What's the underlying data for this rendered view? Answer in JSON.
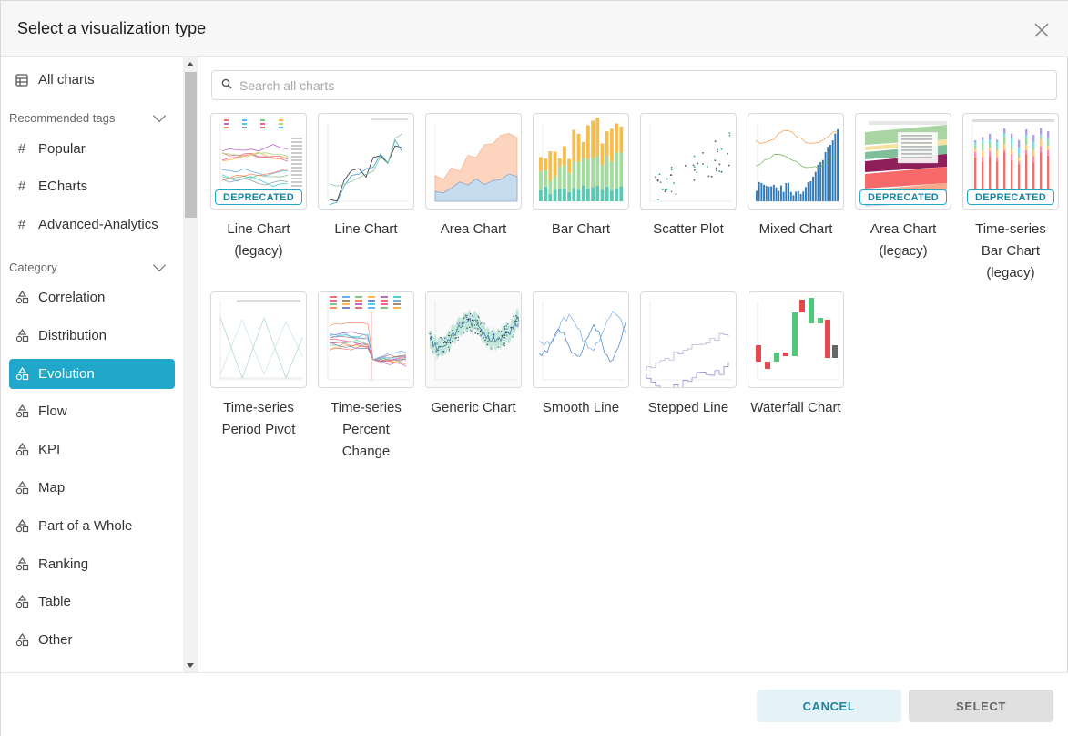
{
  "header": {
    "title": "Select a visualization type"
  },
  "sidebar": {
    "all_charts": "All charts",
    "recommended_heading": "Recommended tags",
    "tags": [
      "Popular",
      "ECharts",
      "Advanced-Analytics"
    ],
    "category_heading": "Category",
    "categories": [
      "Correlation",
      "Distribution",
      "Evolution",
      "Flow",
      "KPI",
      "Map",
      "Part of a Whole",
      "Ranking",
      "Table",
      "Other"
    ],
    "active_category": "Evolution"
  },
  "search": {
    "placeholder": "Search all charts",
    "value": ""
  },
  "badge_text": "DEPRECATED",
  "charts": [
    {
      "name": "Line Chart (legacy)",
      "deprecated": true
    },
    {
      "name": "Line Chart",
      "deprecated": false
    },
    {
      "name": "Area Chart",
      "deprecated": false
    },
    {
      "name": "Bar Chart",
      "deprecated": false
    },
    {
      "name": "Scatter Plot",
      "deprecated": false
    },
    {
      "name": "Mixed Chart",
      "deprecated": false
    },
    {
      "name": "Area Chart (legacy)",
      "deprecated": true
    },
    {
      "name": "Time-series Bar Chart (legacy)",
      "deprecated": true
    },
    {
      "name": "Time-series Period Pivot",
      "deprecated": false
    },
    {
      "name": "Time-series Percent Change",
      "deprecated": false
    },
    {
      "name": "Generic Chart",
      "deprecated": false
    },
    {
      "name": "Smooth Line",
      "deprecated": false
    },
    {
      "name": "Stepped Line",
      "deprecated": false
    },
    {
      "name": "Waterfall Chart",
      "deprecated": false
    }
  ],
  "footer": {
    "cancel": "CANCEL",
    "select": "SELECT"
  },
  "colors": {
    "accent": "#20a7c9",
    "accent_dark": "#1985a0"
  }
}
